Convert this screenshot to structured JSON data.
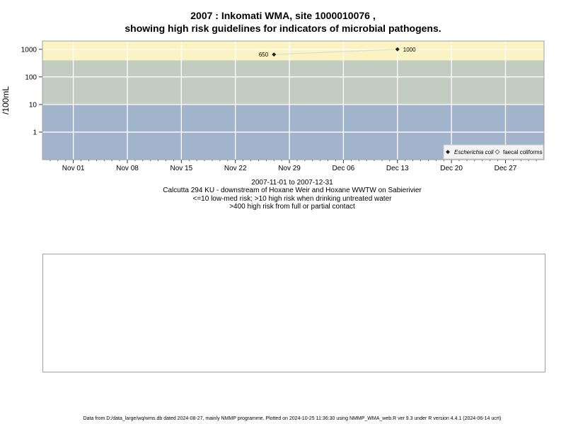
{
  "title_line1": "2007 : Inkomati WMA, site 1000010076 ,",
  "title_line2": "showing high risk guidelines for indicators of microbial pathogens.",
  "caption": [
    "2007-11-01 to 2007-12-31",
    "Calcutta 294 KU - downstream of Hoxane Weir and Hoxane WWTW on Sabierivier",
    "<=10 low-med risk; >10 high risk when drinking untreated water",
    ">400 high risk from full or partial contact"
  ],
  "footer": "Data from D:/data_large/wq/wms.db dated 2024-08-27, mainly NMMP programme. Plotted on 2024-10-25 11:36:30 using NMMP_WMA_web.R ver 9.3 under R version 4.4.1 (2024-06-14 ucrt)",
  "chart_data": {
    "type": "line",
    "ylabel": "/100mL",
    "y_scale": "log",
    "ylim": [
      0.1,
      2000
    ],
    "xlim": [
      "2007-10-28",
      "2008-01-01"
    ],
    "x_ticks": [
      {
        "date": "2007-11-01",
        "label": "Nov 01"
      },
      {
        "date": "2007-11-08",
        "label": "Nov 08"
      },
      {
        "date": "2007-11-15",
        "label": "Nov 15"
      },
      {
        "date": "2007-11-22",
        "label": "Nov 22"
      },
      {
        "date": "2007-11-29",
        "label": "Nov 29"
      },
      {
        "date": "2007-12-06",
        "label": "Dec 06"
      },
      {
        "date": "2007-12-13",
        "label": "Dec 13"
      },
      {
        "date": "2007-12-20",
        "label": "Dec 20"
      },
      {
        "date": "2007-12-27",
        "label": "Dec 27"
      }
    ],
    "y_ticks": [
      {
        "value": 1,
        "label": "1"
      },
      {
        "value": 10,
        "label": "10"
      },
      {
        "value": 100,
        "label": "100"
      },
      {
        "value": 1000,
        "label": "1000"
      }
    ],
    "bands": [
      {
        "from": 0.1,
        "to": 10,
        "color": "#a2b4cc"
      },
      {
        "from": 10,
        "to": 400,
        "color": "#c3ccc0"
      },
      {
        "from": 400,
        "to": 2000,
        "color": "#fcf3c2"
      }
    ],
    "grid": true,
    "legend_position": "bottom-right",
    "series": [
      {
        "name": "Escherichia coli",
        "color": "#222222",
        "line_color": "#d8d8d8",
        "points": [
          {
            "x": "2007-11-27",
            "y": 650,
            "label": "650"
          },
          {
            "x": "2007-12-13",
            "y": 1000,
            "label": "1000"
          }
        ]
      },
      {
        "name": "faecal coliforms",
        "color": "#555555",
        "points": []
      }
    ]
  }
}
